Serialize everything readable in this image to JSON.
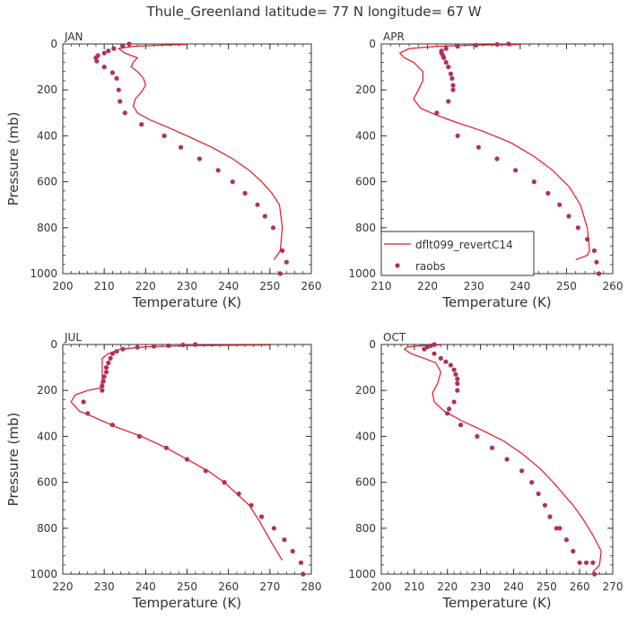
{
  "title": "Thule_Greenland  latitude= 77 N longitude= 67 W",
  "colors": {
    "model": "#e8141c",
    "obs": "#b03060",
    "axis": "#333333"
  },
  "legend": {
    "model_label": "dflt099_revertC14",
    "obs_label": "raobs",
    "placement": "lower-right of APR panel"
  },
  "chart_data": [
    {
      "type": "line",
      "panel": "JAN",
      "xlabel": "Temperature (K)",
      "ylabel": "Pressure (mb)",
      "xlim": [
        200,
        260
      ],
      "ylim": [
        1000,
        0
      ],
      "y_inverted": true,
      "xticks": [
        "200",
        "210",
        "220",
        "230",
        "240",
        "250",
        "260"
      ],
      "yticks": [
        "0",
        "200",
        "400",
        "600",
        "800",
        "1000"
      ],
      "series": [
        {
          "name": "dflt099_revertC14",
          "kind": "line",
          "x": [
            230,
            224,
            217,
            213.5,
            215,
            218,
            217,
            216.5,
            218,
            219.5,
            220,
            219,
            217.5,
            217,
            218,
            221,
            225,
            230,
            236,
            241,
            245,
            248,
            250.5,
            252.3,
            253,
            252.5,
            251
          ],
          "y": [
            2,
            5,
            10,
            20,
            40,
            60,
            80,
            100,
            120,
            150,
            180,
            210,
            240,
            270,
            300,
            330,
            360,
            400,
            450,
            500,
            550,
            600,
            650,
            700,
            800,
            900,
            940
          ]
        },
        {
          "name": "raobs",
          "kind": "scatter",
          "x": [
            216,
            214.5,
            212.3,
            211,
            210,
            208.5,
            208,
            208.2,
            210,
            212,
            213,
            213.5,
            213.8,
            215,
            219,
            224.5,
            228.5,
            233,
            237.5,
            241,
            244,
            247,
            248.8,
            250.8,
            253,
            254,
            252.5
          ],
          "y": [
            0,
            10,
            20,
            30,
            40,
            50,
            60,
            75,
            100,
            125,
            150,
            200,
            250,
            300,
            350,
            400,
            450,
            500,
            550,
            600,
            650,
            700,
            750,
            800,
            900,
            950,
            1000
          ]
        }
      ]
    },
    {
      "type": "line",
      "panel": "APR",
      "xlabel": "Temperature (K)",
      "ylabel": "",
      "xlim": [
        210,
        260
      ],
      "ylim": [
        1000,
        0
      ],
      "y_inverted": true,
      "xticks": [
        "210",
        "220",
        "230",
        "240",
        "250",
        "260"
      ],
      "yticks": [
        "0",
        "200",
        "400",
        "600",
        "800",
        "1000"
      ],
      "series": [
        {
          "name": "dflt099_revertC14",
          "kind": "line",
          "x": [
            240,
            230,
            222,
            216,
            214,
            215,
            217,
            219,
            219,
            218,
            217,
            218.5,
            222,
            226,
            232,
            238,
            243,
            247,
            250.5,
            253,
            254.5,
            255,
            254.5,
            252
          ],
          "y": [
            2,
            5,
            10,
            20,
            40,
            60,
            80,
            120,
            160,
            200,
            240,
            280,
            310,
            340,
            380,
            430,
            490,
            550,
            620,
            700,
            800,
            900,
            920,
            940
          ]
        },
        {
          "name": "raobs",
          "kind": "scatter",
          "x": [
            237.5,
            235,
            230.5,
            226.5,
            224,
            223,
            223,
            223.3,
            223.5,
            224,
            224.5,
            225,
            225.3,
            225.5,
            225.5,
            224.5,
            222,
            226.5,
            231,
            235,
            239,
            243,
            246,
            248.5,
            250.5,
            252.5,
            254.5,
            256,
            256.5,
            257,
            257
          ],
          "y": [
            0,
            2,
            5,
            10,
            20,
            30,
            40,
            50,
            60,
            80,
            100,
            130,
            150,
            180,
            200,
            250,
            300,
            400,
            450,
            500,
            550,
            600,
            650,
            700,
            750,
            800,
            850,
            900,
            950,
            1000,
            1000
          ]
        }
      ]
    },
    {
      "type": "line",
      "panel": "JUL",
      "xlabel": "Temperature (K)",
      "ylabel": "Pressure (mb)",
      "xlim": [
        220,
        280
      ],
      "ylim": [
        1000,
        0
      ],
      "y_inverted": true,
      "xticks": [
        "220",
        "230",
        "240",
        "250",
        "260",
        "270",
        "280"
      ],
      "yticks": [
        "0",
        "200",
        "400",
        "600",
        "800",
        "1000"
      ],
      "series": [
        {
          "name": "dflt099_revertC14",
          "kind": "line",
          "x": [
            270,
            250,
            240,
            234,
            231,
            229.5,
            229.5,
            229.5,
            229,
            226,
            223,
            222,
            224,
            228,
            233,
            239,
            245,
            250,
            255,
            259,
            262,
            265,
            267.5,
            270,
            273
          ],
          "y": [
            2,
            5,
            10,
            20,
            40,
            60,
            100,
            150,
            190,
            200,
            220,
            250,
            290,
            320,
            360,
            400,
            450,
            500,
            550,
            600,
            650,
            700,
            770,
            850,
            940
          ]
        },
        {
          "name": "raobs",
          "kind": "scatter",
          "x": [
            252,
            249,
            245.5,
            242,
            238,
            234.5,
            233,
            232,
            231.5,
            231,
            230.5,
            230.5,
            230,
            229.8,
            229.5,
            229.5,
            225,
            226,
            232,
            238.5,
            245,
            250,
            254.5,
            259,
            262.5,
            265.5,
            268,
            271,
            273.5,
            275.5,
            277.5,
            278
          ],
          "y": [
            0,
            2,
            5,
            8,
            12,
            20,
            30,
            40,
            60,
            80,
            100,
            120,
            140,
            160,
            180,
            200,
            250,
            300,
            350,
            400,
            450,
            500,
            550,
            600,
            650,
            700,
            750,
            800,
            850,
            900,
            950,
            1000
          ]
        }
      ]
    },
    {
      "type": "line",
      "panel": "OCT",
      "xlabel": "Temperature (K)",
      "ylabel": "",
      "xlim": [
        200,
        270
      ],
      "ylim": [
        1000,
        0
      ],
      "y_inverted": true,
      "xticks": [
        "200",
        "210",
        "220",
        "230",
        "240",
        "250",
        "260",
        "270"
      ],
      "yticks": [
        "0",
        "200",
        "400",
        "600",
        "800",
        "1000"
      ],
      "series": [
        {
          "name": "dflt099_revertC14",
          "kind": "line",
          "x": [
            218,
            212,
            208,
            207,
            209,
            213,
            216.5,
            218,
            217,
            215.5,
            216,
            219,
            224,
            230,
            237,
            243,
            248,
            252,
            255,
            258,
            261,
            264,
            266.5,
            266,
            264
          ],
          "y": [
            2,
            5,
            10,
            20,
            40,
            60,
            80,
            120,
            170,
            210,
            250,
            290,
            330,
            370,
            420,
            480,
            540,
            600,
            650,
            700,
            760,
            830,
            900,
            960,
            990
          ]
        },
        {
          "name": "raobs",
          "kind": "scatter",
          "x": [
            216,
            215,
            214,
            213,
            216,
            218,
            219.5,
            221,
            222,
            222.5,
            223,
            223,
            223,
            222,
            220.5,
            220,
            224,
            229,
            233.5,
            238,
            242.5,
            245.5,
            247.5,
            249.5,
            251,
            253,
            254,
            256,
            258,
            260,
            262,
            264,
            264.5
          ],
          "y": [
            0,
            5,
            10,
            20,
            40,
            60,
            75,
            90,
            110,
            130,
            150,
            170,
            200,
            250,
            280,
            300,
            350,
            400,
            450,
            500,
            550,
            600,
            650,
            700,
            750,
            800,
            800,
            850,
            900,
            950,
            950,
            950,
            1000
          ]
        }
      ]
    }
  ]
}
